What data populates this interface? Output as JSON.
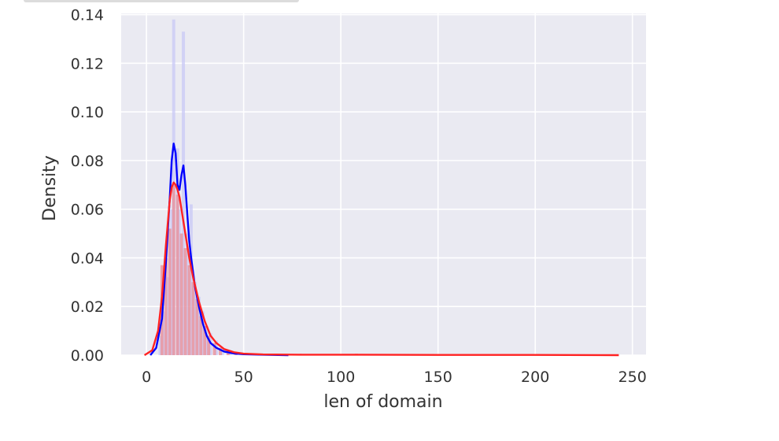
{
  "chart_data": {
    "type": "histogram with density curves",
    "xlabel": "len of domain",
    "ylabel": "Density",
    "xlim": [
      -13,
      257
    ],
    "ylim": [
      0,
      0.1405
    ],
    "xticks": [
      0,
      50,
      100,
      150,
      200,
      250
    ],
    "yticks": [
      0.0,
      0.02,
      0.04,
      0.06,
      0.08,
      0.1,
      0.12,
      0.14
    ],
    "xtick_labels": [
      "0",
      "50",
      "100",
      "150",
      "200",
      "250"
    ],
    "ytick_labels": [
      "0.00",
      "0.02",
      "0.04",
      "0.06",
      "0.08",
      "0.10",
      "0.12",
      "0.14"
    ],
    "grid": true,
    "style": "seaborn darkgrid",
    "background_color": "#eaeaf2",
    "series": [
      {
        "color": "#0000ff",
        "hist_color": "#c8c8f5",
        "hist_bins": [
          {
            "x": 7,
            "y": 0.008
          },
          {
            "x": 9,
            "y": 0.018
          },
          {
            "x": 11,
            "y": 0.032
          },
          {
            "x": 13,
            "y": 0.06
          },
          {
            "x": 14,
            "y": 0.138
          },
          {
            "x": 16,
            "y": 0.085
          },
          {
            "x": 17,
            "y": 0.06
          },
          {
            "x": 19,
            "y": 0.133
          },
          {
            "x": 21,
            "y": 0.05
          },
          {
            "x": 23,
            "y": 0.062
          },
          {
            "x": 25,
            "y": 0.03
          },
          {
            "x": 27,
            "y": 0.024
          },
          {
            "x": 29,
            "y": 0.018
          },
          {
            "x": 31,
            "y": 0.012
          },
          {
            "x": 33,
            "y": 0.009
          },
          {
            "x": 36,
            "y": 0.006
          },
          {
            "x": 39,
            "y": 0.003
          },
          {
            "x": 43,
            "y": 0.002
          }
        ],
        "kde_x": [
          2,
          5,
          8,
          10,
          12,
          13,
          14,
          15,
          16,
          17,
          18,
          19,
          20,
          21,
          22,
          23,
          24,
          25,
          27,
          29,
          31,
          33,
          36,
          40,
          45,
          50,
          60,
          73
        ],
        "kde_y": [
          0.0,
          0.003,
          0.015,
          0.038,
          0.065,
          0.08,
          0.087,
          0.083,
          0.07,
          0.068,
          0.074,
          0.078,
          0.07,
          0.058,
          0.047,
          0.04,
          0.034,
          0.028,
          0.02,
          0.013,
          0.008,
          0.005,
          0.003,
          0.0015,
          0.0007,
          0.0004,
          0.0002,
          0.0
        ]
      },
      {
        "color": "#ff2222",
        "hist_color": "#e8909a",
        "hist_bins": [
          {
            "x": 8,
            "y": 0.037
          },
          {
            "x": 10,
            "y": 0.04
          },
          {
            "x": 12,
            "y": 0.052
          },
          {
            "x": 14,
            "y": 0.07
          },
          {
            "x": 16,
            "y": 0.066
          },
          {
            "x": 18,
            "y": 0.05
          },
          {
            "x": 20,
            "y": 0.044
          },
          {
            "x": 22,
            "y": 0.037
          },
          {
            "x": 24,
            "y": 0.03
          },
          {
            "x": 26,
            "y": 0.023
          },
          {
            "x": 28,
            "y": 0.016
          },
          {
            "x": 30,
            "y": 0.012
          },
          {
            "x": 32,
            "y": 0.008
          },
          {
            "x": 35,
            "y": 0.005
          },
          {
            "x": 38,
            "y": 0.003
          },
          {
            "x": 42,
            "y": 0.002
          },
          {
            "x": 46,
            "y": 0.001
          },
          {
            "x": 108,
            "y": 0.0006
          }
        ],
        "kde_x": [
          -1,
          3,
          6,
          8,
          10,
          12,
          13,
          14,
          15,
          16,
          17,
          18,
          20,
          22,
          24,
          27,
          30,
          33,
          36,
          40,
          45,
          50,
          60,
          80,
          110,
          150,
          200,
          243
        ],
        "kde_y": [
          0.0,
          0.002,
          0.01,
          0.024,
          0.045,
          0.064,
          0.069,
          0.071,
          0.07,
          0.068,
          0.065,
          0.06,
          0.05,
          0.04,
          0.032,
          0.022,
          0.014,
          0.008,
          0.005,
          0.0025,
          0.0012,
          0.0006,
          0.0003,
          0.0002,
          0.0002,
          0.0001,
          0.0001,
          0.0
        ]
      }
    ]
  }
}
